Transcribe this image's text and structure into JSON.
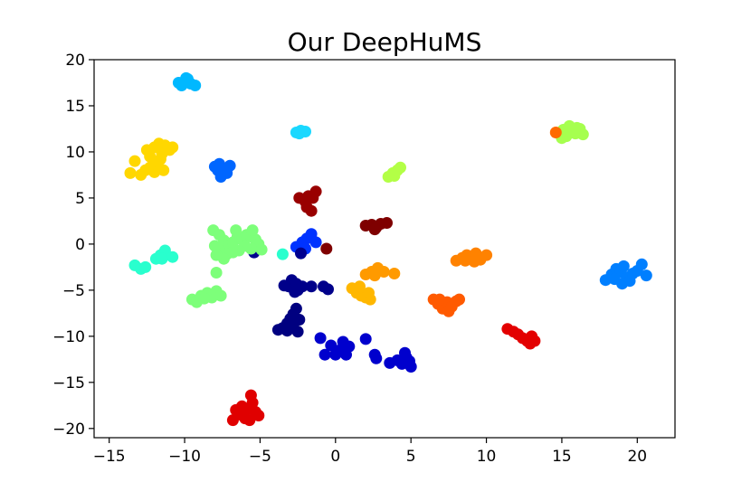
{
  "chart_data": {
    "type": "scatter",
    "title": "Our DeepHuMS",
    "xlabel": "",
    "ylabel": "",
    "xlim": [
      -16,
      22.5
    ],
    "ylim": [
      -21,
      20
    ],
    "xticks": [
      -15,
      -10,
      -5,
      0,
      5,
      10,
      15,
      20
    ],
    "yticks": [
      -20,
      -15,
      -10,
      -5,
      0,
      5,
      10,
      15,
      20
    ],
    "x_tick_labels": [
      "−15",
      "−10",
      "−5",
      "0",
      "5",
      "10",
      "15",
      "20"
    ],
    "y_tick_labels": [
      "−20",
      "−15",
      "−10",
      "−5",
      "0",
      "5",
      "10",
      "15",
      "20"
    ],
    "grid": false,
    "series": [
      {
        "color": "#00b8ff",
        "points": [
          [
            -10.2,
            17.2
          ],
          [
            -10.0,
            17.6
          ],
          [
            -9.8,
            17.9
          ],
          [
            -9.6,
            17.4
          ],
          [
            -9.3,
            17.2
          ],
          [
            -9.9,
            18.0
          ],
          [
            -10.4,
            17.5
          ]
        ]
      },
      {
        "color": "#1ad8ff",
        "points": [
          [
            -2.6,
            12.1
          ],
          [
            -2.3,
            12.3
          ],
          [
            -2.0,
            12.2
          ],
          [
            -2.4,
            12.0
          ]
        ]
      },
      {
        "color": "#ffd700",
        "points": [
          [
            -13.6,
            7.7
          ],
          [
            -13.3,
            9.0
          ],
          [
            -12.9,
            7.5
          ],
          [
            -12.6,
            8.0
          ],
          [
            -12.3,
            8.3
          ],
          [
            -12.0,
            7.8
          ],
          [
            -11.8,
            8.5
          ],
          [
            -11.6,
            9.2
          ],
          [
            -11.4,
            8.0
          ],
          [
            -12.3,
            9.5
          ],
          [
            -12.5,
            10.2
          ],
          [
            -12.0,
            10.5
          ],
          [
            -11.7,
            10.9
          ],
          [
            -11.3,
            10.7
          ],
          [
            -11.0,
            10.2
          ],
          [
            -10.8,
            10.5
          ],
          [
            -12.0,
            9.0
          ],
          [
            -11.5,
            9.8
          ]
        ]
      },
      {
        "color": "#0066ff",
        "points": [
          [
            -8.0,
            8.4
          ],
          [
            -7.7,
            8.7
          ],
          [
            -7.4,
            8.2
          ],
          [
            -7.2,
            7.7
          ],
          [
            -7.6,
            7.3
          ],
          [
            -7.0,
            8.5
          ],
          [
            -7.8,
            8.0
          ]
        ]
      },
      {
        "color": "#a6ff4f",
        "points": [
          [
            14.8,
            12.0
          ],
          [
            15.1,
            12.4
          ],
          [
            15.3,
            11.7
          ],
          [
            15.6,
            12.3
          ],
          [
            15.9,
            12.0
          ],
          [
            16.2,
            12.5
          ],
          [
            16.4,
            11.9
          ],
          [
            15.0,
            11.5
          ],
          [
            15.5,
            12.8
          ],
          [
            16.0,
            12.6
          ]
        ]
      },
      {
        "color": "#ff6a00",
        "points": [
          [
            14.6,
            12.1
          ]
        ]
      },
      {
        "color": "#b3ff46",
        "points": [
          [
            3.5,
            7.3
          ],
          [
            3.8,
            7.7
          ],
          [
            4.1,
            8.0
          ],
          [
            4.3,
            8.3
          ],
          [
            3.9,
            7.4
          ]
        ]
      },
      {
        "color": "#990000",
        "points": [
          [
            -2.4,
            5.0
          ],
          [
            -2.0,
            4.6
          ],
          [
            -1.8,
            5.2
          ],
          [
            -1.5,
            5.0
          ],
          [
            -1.3,
            5.7
          ],
          [
            -1.9,
            4.0
          ],
          [
            -1.6,
            3.6
          ]
        ]
      },
      {
        "color": "#7f0000",
        "points": [
          [
            2.0,
            2.0
          ],
          [
            2.4,
            2.1
          ],
          [
            2.7,
            1.8
          ],
          [
            3.0,
            2.2
          ],
          [
            3.4,
            2.3
          ],
          [
            2.6,
            1.6
          ],
          [
            -0.6,
            -0.5
          ]
        ]
      },
      {
        "color": "#0033ff",
        "points": [
          [
            -2.6,
            -0.3
          ],
          [
            -2.2,
            0.2
          ],
          [
            -1.9,
            0.6
          ],
          [
            -1.6,
            1.1
          ],
          [
            -1.3,
            0.2
          ],
          [
            -2.0,
            -0.5
          ]
        ]
      },
      {
        "color": "#00008f",
        "points": [
          [
            -2.3,
            -1.0
          ],
          [
            -5.4,
            -0.9
          ]
        ]
      },
      {
        "color": "#7dff7a",
        "points": [
          [
            -8.1,
            1.5
          ],
          [
            -7.7,
            1.0
          ],
          [
            -7.4,
            0.4
          ],
          [
            -7.1,
            -0.2
          ],
          [
            -6.8,
            0.2
          ],
          [
            -6.5,
            0.8
          ],
          [
            -6.2,
            0.5
          ],
          [
            -5.9,
            1.0
          ],
          [
            -5.6,
            0.8
          ],
          [
            -5.3,
            0.5
          ],
          [
            -5.1,
            0.0
          ],
          [
            -4.9,
            -0.6
          ],
          [
            -5.6,
            -0.5
          ],
          [
            -6.0,
            -0.2
          ],
          [
            -6.4,
            -0.7
          ],
          [
            -6.8,
            -0.9
          ],
          [
            -7.2,
            -1.1
          ],
          [
            -7.7,
            -0.7
          ],
          [
            -7.4,
            -1.6
          ],
          [
            -7.9,
            -1.2
          ],
          [
            -8.0,
            -0.2
          ],
          [
            -6.6,
            1.5
          ],
          [
            -5.5,
            1.5
          ],
          [
            -7.9,
            -3.1
          ],
          [
            -9.5,
            -6.0
          ],
          [
            -9.2,
            -6.3
          ],
          [
            -8.9,
            -5.6
          ],
          [
            -8.5,
            -5.3
          ],
          [
            -8.2,
            -5.8
          ],
          [
            -7.9,
            -5.1
          ],
          [
            -7.6,
            -5.6
          ],
          [
            -8.7,
            -5.9
          ]
        ]
      },
      {
        "color": "#29ffce",
        "points": [
          [
            -13.3,
            -2.3
          ],
          [
            -12.9,
            -2.7
          ],
          [
            -12.6,
            -2.5
          ],
          [
            -11.9,
            -1.6
          ],
          [
            -11.6,
            -1.2
          ],
          [
            -11.3,
            -0.7
          ],
          [
            -11.5,
            -1.6
          ],
          [
            -10.8,
            -1.4
          ],
          [
            -3.5,
            -1.1
          ]
        ]
      },
      {
        "color": "#00008a",
        "points": [
          [
            -3.1,
            -4.6
          ],
          [
            -2.9,
            -3.9
          ],
          [
            -2.6,
            -4.3
          ],
          [
            -2.5,
            -5.0
          ],
          [
            -2.2,
            -4.6
          ],
          [
            -1.6,
            -4.6
          ],
          [
            -0.8,
            -4.6
          ],
          [
            -0.5,
            -4.9
          ],
          [
            -2.7,
            -5.2
          ],
          [
            -3.4,
            -4.5
          ]
        ]
      },
      {
        "color": "#000080",
        "points": [
          [
            -3.8,
            -9.3
          ],
          [
            -3.5,
            -9.1
          ],
          [
            -3.2,
            -8.6
          ],
          [
            -3.0,
            -8.1
          ],
          [
            -2.8,
            -7.6
          ],
          [
            -2.6,
            -7.0
          ],
          [
            -2.5,
            -9.5
          ],
          [
            -2.8,
            -9.0
          ],
          [
            -3.2,
            -9.4
          ],
          [
            -2.4,
            -8.2
          ]
        ]
      },
      {
        "color": "#0000cd",
        "points": [
          [
            -1.0,
            -10.2
          ],
          [
            -0.7,
            -12.0
          ],
          [
            -0.3,
            -11.0
          ],
          [
            0.0,
            -12.0
          ],
          [
            0.3,
            -11.5
          ],
          [
            0.5,
            -10.6
          ],
          [
            0.7,
            -12.0
          ],
          [
            0.9,
            -11.1
          ],
          [
            2.0,
            -10.3
          ],
          [
            2.6,
            -12.0
          ],
          [
            2.7,
            -12.4
          ],
          [
            3.6,
            -12.9
          ],
          [
            4.1,
            -12.6
          ],
          [
            4.4,
            -13.0
          ],
          [
            4.7,
            -12.3
          ],
          [
            5.0,
            -13.3
          ],
          [
            4.6,
            -11.8
          ],
          [
            4.9,
            -12.7
          ]
        ]
      },
      {
        "color": "#ffb700",
        "points": [
          [
            1.1,
            -4.8
          ],
          [
            1.4,
            -5.3
          ],
          [
            1.7,
            -5.6
          ],
          [
            2.0,
            -5.8
          ],
          [
            2.3,
            -6.0
          ],
          [
            2.2,
            -5.3
          ],
          [
            1.6,
            -4.6
          ]
        ]
      },
      {
        "color": "#ff9a00",
        "points": [
          [
            2.0,
            -3.3
          ],
          [
            2.4,
            -3.0
          ],
          [
            2.8,
            -2.6
          ],
          [
            3.2,
            -3.0
          ],
          [
            2.6,
            -3.4
          ],
          [
            3.9,
            -3.2
          ]
        ]
      },
      {
        "color": "#ff8200",
        "points": [
          [
            8.0,
            -1.8
          ],
          [
            8.4,
            -1.5
          ],
          [
            8.7,
            -1.2
          ],
          [
            9.0,
            -1.6
          ],
          [
            9.3,
            -1.0
          ],
          [
            9.6,
            -1.7
          ],
          [
            10.0,
            -1.2
          ],
          [
            9.2,
            -1.9
          ],
          [
            8.6,
            -1.8
          ]
        ]
      },
      {
        "color": "#ff5a00",
        "points": [
          [
            6.5,
            -6.0
          ],
          [
            6.8,
            -6.5
          ],
          [
            7.1,
            -7.0
          ],
          [
            7.4,
            -6.3
          ],
          [
            7.7,
            -6.8
          ],
          [
            8.0,
            -6.2
          ],
          [
            8.2,
            -6.0
          ],
          [
            7.5,
            -7.3
          ],
          [
            6.9,
            -6.0
          ]
        ]
      },
      {
        "color": "#e30000",
        "points": [
          [
            11.4,
            -9.2
          ],
          [
            11.8,
            -9.5
          ],
          [
            12.1,
            -9.8
          ],
          [
            12.4,
            -10.2
          ],
          [
            12.7,
            -10.5
          ],
          [
            13.0,
            -10.0
          ],
          [
            13.2,
            -10.5
          ],
          [
            12.9,
            -10.8
          ]
        ]
      },
      {
        "color": "#007fff",
        "points": [
          [
            17.9,
            -3.9
          ],
          [
            18.3,
            -3.3
          ],
          [
            18.6,
            -2.7
          ],
          [
            18.9,
            -3.0
          ],
          [
            19.1,
            -2.4
          ],
          [
            19.3,
            -3.6
          ],
          [
            19.5,
            -4.0
          ],
          [
            19.7,
            -3.2
          ],
          [
            20.0,
            -2.9
          ],
          [
            20.3,
            -2.2
          ],
          [
            20.6,
            -3.4
          ],
          [
            19.0,
            -4.3
          ],
          [
            18.5,
            -3.8
          ]
        ]
      },
      {
        "color": "#e00000",
        "points": [
          [
            -6.8,
            -19.1
          ],
          [
            -6.6,
            -18.0
          ],
          [
            -6.3,
            -18.5
          ],
          [
            -6.0,
            -18.9
          ],
          [
            -5.8,
            -17.9
          ],
          [
            -5.6,
            -16.4
          ],
          [
            -5.5,
            -17.2
          ],
          [
            -5.3,
            -18.2
          ],
          [
            -5.1,
            -18.6
          ],
          [
            -5.7,
            -19.1
          ],
          [
            -6.2,
            -17.6
          ]
        ]
      }
    ]
  }
}
